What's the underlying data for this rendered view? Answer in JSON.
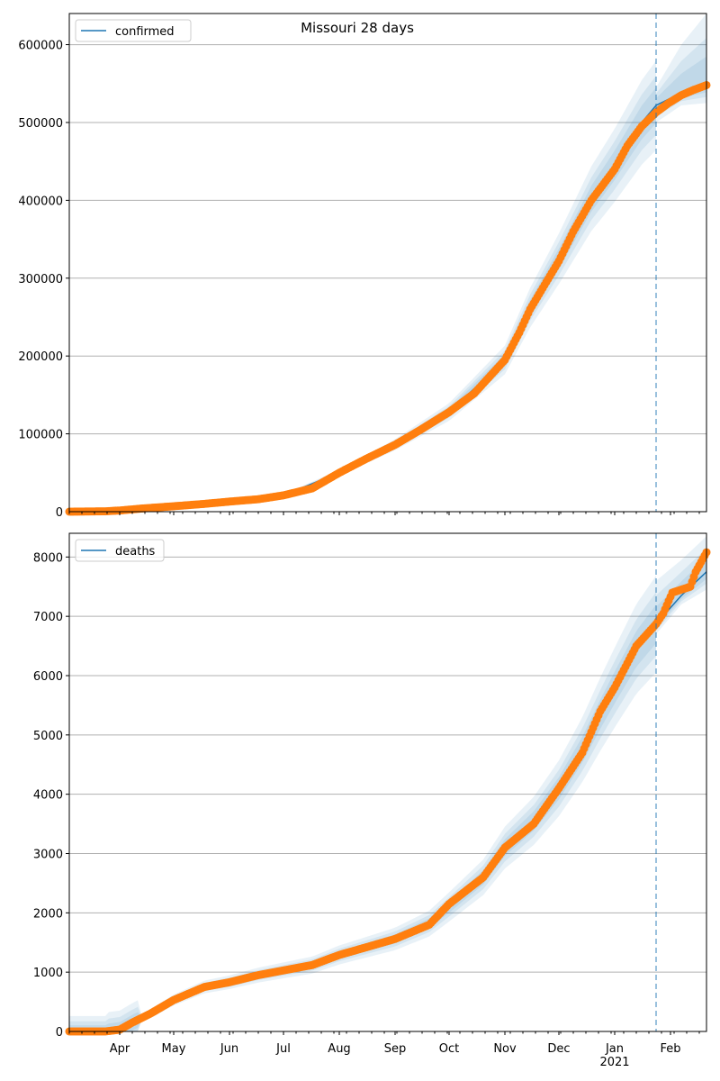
{
  "chart_data": [
    {
      "type": "line",
      "title": "Missouri 28 days",
      "legend": [
        "confirmed"
      ],
      "legend_placement": "top-left",
      "x_start_date": "2020-03-04",
      "x_tick_labels": [
        "Apr",
        "May",
        "Jun",
        "Jul",
        "Aug",
        "Sep",
        "Oct",
        "Nov",
        "Dec",
        "Jan\n2021",
        "Feb"
      ],
      "x_tick_days": [
        28,
        58,
        89,
        119,
        150,
        181,
        211,
        242,
        272,
        303,
        334
      ],
      "xlim_days": [
        0,
        354
      ],
      "forecast_start_day": 326,
      "ylim": [
        0,
        640000
      ],
      "y_ticks": [
        0,
        100000,
        200000,
        300000,
        400000,
        500000,
        600000
      ],
      "grid": true,
      "observed": {
        "day": [
          0,
          20,
          28,
          40,
          58,
          75,
          89,
          105,
          119,
          135,
          150,
          165,
          181,
          195,
          211,
          225,
          242,
          250,
          256,
          265,
          272,
          280,
          290,
          303,
          310,
          318,
          326,
          333,
          340,
          347,
          354
        ],
        "value": [
          0,
          500,
          1500,
          4000,
          7000,
          10000,
          13000,
          16000,
          21000,
          30000,
          50000,
          68000,
          86000,
          105000,
          128000,
          152000,
          195000,
          230000,
          260000,
          295000,
          322000,
          360000,
          400000,
          440000,
          470000,
          495000,
          513000,
          525000,
          535000,
          542000,
          548000
        ]
      },
      "model": {
        "day": [
          0,
          28,
          58,
          89,
          119,
          150,
          181,
          211,
          242,
          256,
          272,
          290,
          303,
          318,
          326
        ],
        "value": [
          0,
          1500,
          7000,
          13000,
          21000,
          50000,
          86000,
          128000,
          195000,
          262000,
          325000,
          402000,
          445000,
          500000,
          522000
        ]
      },
      "forecast": {
        "day": [
          326,
          340,
          354
        ],
        "median": [
          522000,
          538000,
          548000
        ],
        "upper": [
          545000,
          600000,
          640000
        ],
        "lower": [
          500000,
          522000,
          525000
        ]
      }
    },
    {
      "type": "line",
      "legend": [
        "deaths"
      ],
      "legend_placement": "top-left",
      "ylim": [
        0,
        8400
      ],
      "y_ticks": [
        0,
        1000,
        2000,
        3000,
        4000,
        5000,
        6000,
        7000,
        8000
      ],
      "grid": true,
      "observed": {
        "day": [
          0,
          20,
          28,
          35,
          45,
          58,
          75,
          89,
          105,
          119,
          135,
          150,
          165,
          181,
          200,
          211,
          230,
          242,
          258,
          272,
          285,
          295,
          303,
          315,
          326,
          330,
          335,
          345,
          348,
          354
        ],
        "value": [
          0,
          0,
          30,
          150,
          300,
          530,
          750,
          830,
          950,
          1030,
          1120,
          1290,
          1420,
          1560,
          1800,
          2150,
          2600,
          3100,
          3500,
          4100,
          4700,
          5400,
          5800,
          6500,
          6870,
          7050,
          7400,
          7500,
          7750,
          8080
        ]
      },
      "model": {
        "day": [
          0,
          20,
          28,
          35,
          45,
          58,
          75,
          89,
          105,
          119,
          135,
          150,
          165,
          181,
          200,
          211,
          230,
          242,
          258,
          272,
          285,
          295,
          303,
          315,
          326
        ],
        "value": [
          0,
          0,
          30,
          150,
          300,
          530,
          750,
          830,
          950,
          1030,
          1120,
          1290,
          1420,
          1560,
          1820,
          2100,
          2600,
          3100,
          3550,
          4100,
          4750,
          5350,
          5800,
          6450,
          6870
        ]
      },
      "forecast": {
        "day": [
          326,
          340,
          354
        ],
        "median": [
          6870,
          7350,
          7750
        ],
        "upper": [
          7600,
          7950,
          8350
        ],
        "lower": [
          6700,
          7200,
          7450
        ]
      }
    }
  ],
  "colors": {
    "model": "#1f77b4",
    "observed": "#ff7f0e",
    "band": "#1f77b4"
  }
}
